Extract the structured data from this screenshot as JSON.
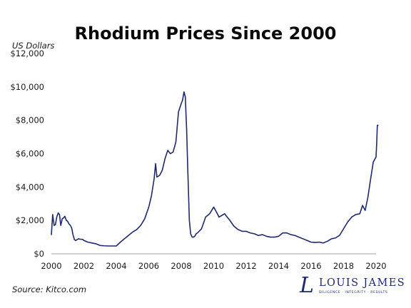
{
  "chart_data": {
    "type": "line",
    "title": "Rhodium Prices Since 2000",
    "ylabel": "US Dollars",
    "xlabel": "",
    "xlim": [
      2000,
      2020
    ],
    "ylim": [
      0,
      12000
    ],
    "x_ticks": [
      2000,
      2002,
      2004,
      2006,
      2008,
      2010,
      2012,
      2014,
      2016,
      2018,
      2020
    ],
    "y_ticks": [
      0,
      2000,
      4000,
      6000,
      8000,
      10000,
      12000
    ],
    "y_tick_labels": [
      "$0",
      "$2,000",
      "$4,000",
      "$6,000",
      "$8,000",
      "$10,000",
      "$12,000"
    ],
    "grid": false,
    "line_color": "#1f2a6b",
    "series": [
      {
        "x": [
          2000.0,
          2000.08,
          2000.17,
          2000.25,
          2000.33,
          2000.42,
          2000.5,
          2000.58,
          2000.67,
          2000.75,
          2000.83,
          2000.92,
          2001.0,
          2001.08,
          2001.17,
          2001.25,
          2001.33,
          2001.42,
          2001.5,
          2001.58,
          2001.67,
          2001.75,
          2001.83,
          2001.92,
          2002.0,
          2002.25,
          2002.5,
          2002.75,
          2003.0,
          2003.25,
          2003.5,
          2003.75,
          2004.0,
          2004.25,
          2004.5,
          2004.75,
          2005.0,
          2005.25,
          2005.5,
          2005.75,
          2006.0,
          2006.17,
          2006.33,
          2006.42,
          2006.5,
          2006.67,
          2006.83,
          2007.0,
          2007.17,
          2007.33,
          2007.5,
          2007.67,
          2007.83,
          2008.0,
          2008.08,
          2008.17,
          2008.25,
          2008.33,
          2008.42,
          2008.5,
          2008.58,
          2008.67,
          2008.75,
          2008.83,
          2008.92,
          2009.0,
          2009.25,
          2009.5,
          2009.75,
          2010.0,
          2010.17,
          2010.33,
          2010.5,
          2010.67,
          2010.83,
          2011.0,
          2011.25,
          2011.5,
          2011.75,
          2012.0,
          2012.25,
          2012.5,
          2012.75,
          2013.0,
          2013.25,
          2013.5,
          2013.75,
          2014.0,
          2014.25,
          2014.5,
          2014.75,
          2015.0,
          2015.25,
          2015.5,
          2015.75,
          2016.0,
          2016.25,
          2016.5,
          2016.75,
          2017.0,
          2017.25,
          2017.5,
          2017.75,
          2018.0,
          2018.25,
          2018.5,
          2018.75,
          2019.0,
          2019.17,
          2019.33,
          2019.5,
          2019.67,
          2019.83,
          2020.0,
          2020.04,
          2020.08,
          2020.12
        ],
        "y": [
          1150,
          2350,
          1700,
          1750,
          2200,
          2450,
          2350,
          1700,
          2100,
          2150,
          2250,
          2000,
          1950,
          1800,
          1700,
          1550,
          1150,
          850,
          800,
          850,
          900,
          880,
          870,
          870,
          800,
          700,
          650,
          600,
          500,
          480,
          470,
          470,
          470,
          700,
          900,
          1100,
          1300,
          1450,
          1700,
          2100,
          2800,
          3500,
          4500,
          5400,
          4600,
          4700,
          5000,
          5700,
          6200,
          6000,
          6100,
          6700,
          8500,
          9000,
          9200,
          9700,
          9400,
          7500,
          4500,
          2000,
          1200,
          1000,
          1000,
          1050,
          1200,
          1250,
          1500,
          2200,
          2400,
          2800,
          2500,
          2200,
          2300,
          2400,
          2200,
          2000,
          1650,
          1450,
          1350,
          1350,
          1250,
          1200,
          1100,
          1150,
          1050,
          1000,
          1000,
          1050,
          1250,
          1250,
          1150,
          1100,
          1000,
          900,
          800,
          700,
          680,
          700,
          650,
          750,
          900,
          950,
          1100,
          1500,
          1900,
          2200,
          2350,
          2400,
          2900,
          2600,
          3400,
          4500,
          5500,
          5800,
          6600,
          7700,
          7700
        ]
      }
    ]
  },
  "source": "Source: Kitco.com",
  "brand": {
    "mark": "L",
    "name": "LOUIS JAMES",
    "tagline": "DILIGENCE · INTEGRITY · RESULTS"
  }
}
